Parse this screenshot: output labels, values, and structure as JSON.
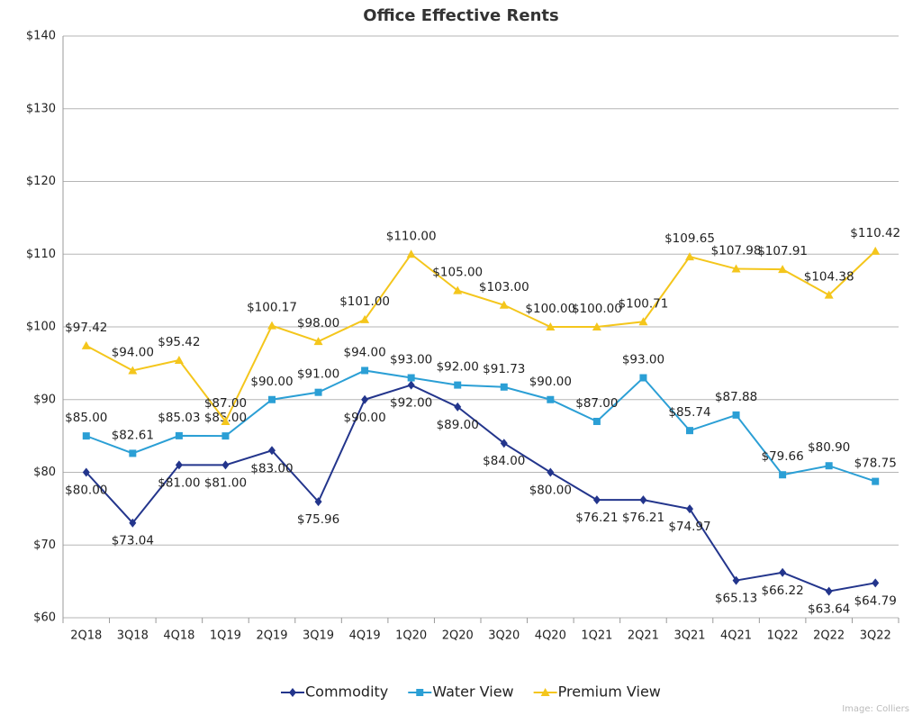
{
  "chart_data": {
    "type": "line",
    "title": "Office Effective Rents",
    "categories": [
      "2Q18",
      "3Q18",
      "4Q18",
      "1Q19",
      "2Q19",
      "3Q19",
      "4Q19",
      "1Q20",
      "2Q20",
      "3Q20",
      "4Q20",
      "1Q21",
      "2Q21",
      "3Q21",
      "4Q21",
      "1Q22",
      "2Q22",
      "3Q22"
    ],
    "series": [
      {
        "name": "Commodity",
        "color": "#23358c",
        "marker": "diamond",
        "values": [
          80.0,
          73.04,
          81.0,
          81.0,
          83.0,
          75.96,
          90.0,
          92.0,
          89.0,
          84.0,
          80.0,
          76.21,
          76.21,
          74.97,
          65.13,
          66.22,
          63.64,
          64.79
        ],
        "value_labels": [
          "$80.00",
          "$73.04",
          "$81.00",
          "$81.00",
          "$83.00",
          "$75.96",
          "$90.00",
          "$92.00",
          "$89.00",
          "$84.00",
          "$80.00",
          "$76.21",
          "$76.21",
          "$74.97",
          "$65.13",
          "$66.22",
          "$63.64",
          "$64.79"
        ]
      },
      {
        "name": "Water View",
        "color": "#2b9fd5",
        "marker": "square",
        "values": [
          85.0,
          82.61,
          85.03,
          85.0,
          90.0,
          91.0,
          94.0,
          93.0,
          92.0,
          91.73,
          90.0,
          87.0,
          93.0,
          85.74,
          87.88,
          79.66,
          80.9,
          78.75
        ],
        "value_labels": [
          "$85.00",
          "$82.61",
          "$85.03",
          "$85.00",
          "$90.00",
          "$91.00",
          "$94.00",
          "$93.00",
          "$92.00",
          "$91.73",
          "$90.00",
          "$87.00",
          "$93.00",
          "$85.74",
          "$87.88",
          "$79.66",
          "$80.90",
          "$78.75"
        ]
      },
      {
        "name": "Premium View",
        "color": "#f4c61c",
        "marker": "triangle",
        "values": [
          97.42,
          94.0,
          95.42,
          87.0,
          100.17,
          98.0,
          101.0,
          110.0,
          105.0,
          103.0,
          100.0,
          100.0,
          100.71,
          109.65,
          107.98,
          107.91,
          104.38,
          110.42
        ],
        "value_labels": [
          "$97.42",
          "$94.00",
          "$95.42",
          "$87.00",
          "$100.17",
          "$98.00",
          "$101.00",
          "$110.00",
          "$105.00",
          "$103.00",
          "$100.00",
          "$100.00",
          "$100.71",
          "$109.65",
          "$107.98",
          "$107.91",
          "$104.38",
          "$110.42"
        ]
      }
    ],
    "ylim": [
      60,
      140
    ],
    "yticks": [
      {
        "value": 60,
        "label": "$60"
      },
      {
        "value": 70,
        "label": "$70"
      },
      {
        "value": 80,
        "label": "$80"
      },
      {
        "value": 90,
        "label": "$90"
      },
      {
        "value": 100,
        "label": "$100"
      },
      {
        "value": 110,
        "label": "$110"
      },
      {
        "value": 120,
        "label": "$120"
      },
      {
        "value": 130,
        "label": "$130"
      },
      {
        "value": 140,
        "label": "$140"
      }
    ],
    "grid": true,
    "legend": "bottom",
    "credit": "Image: Colliers"
  }
}
